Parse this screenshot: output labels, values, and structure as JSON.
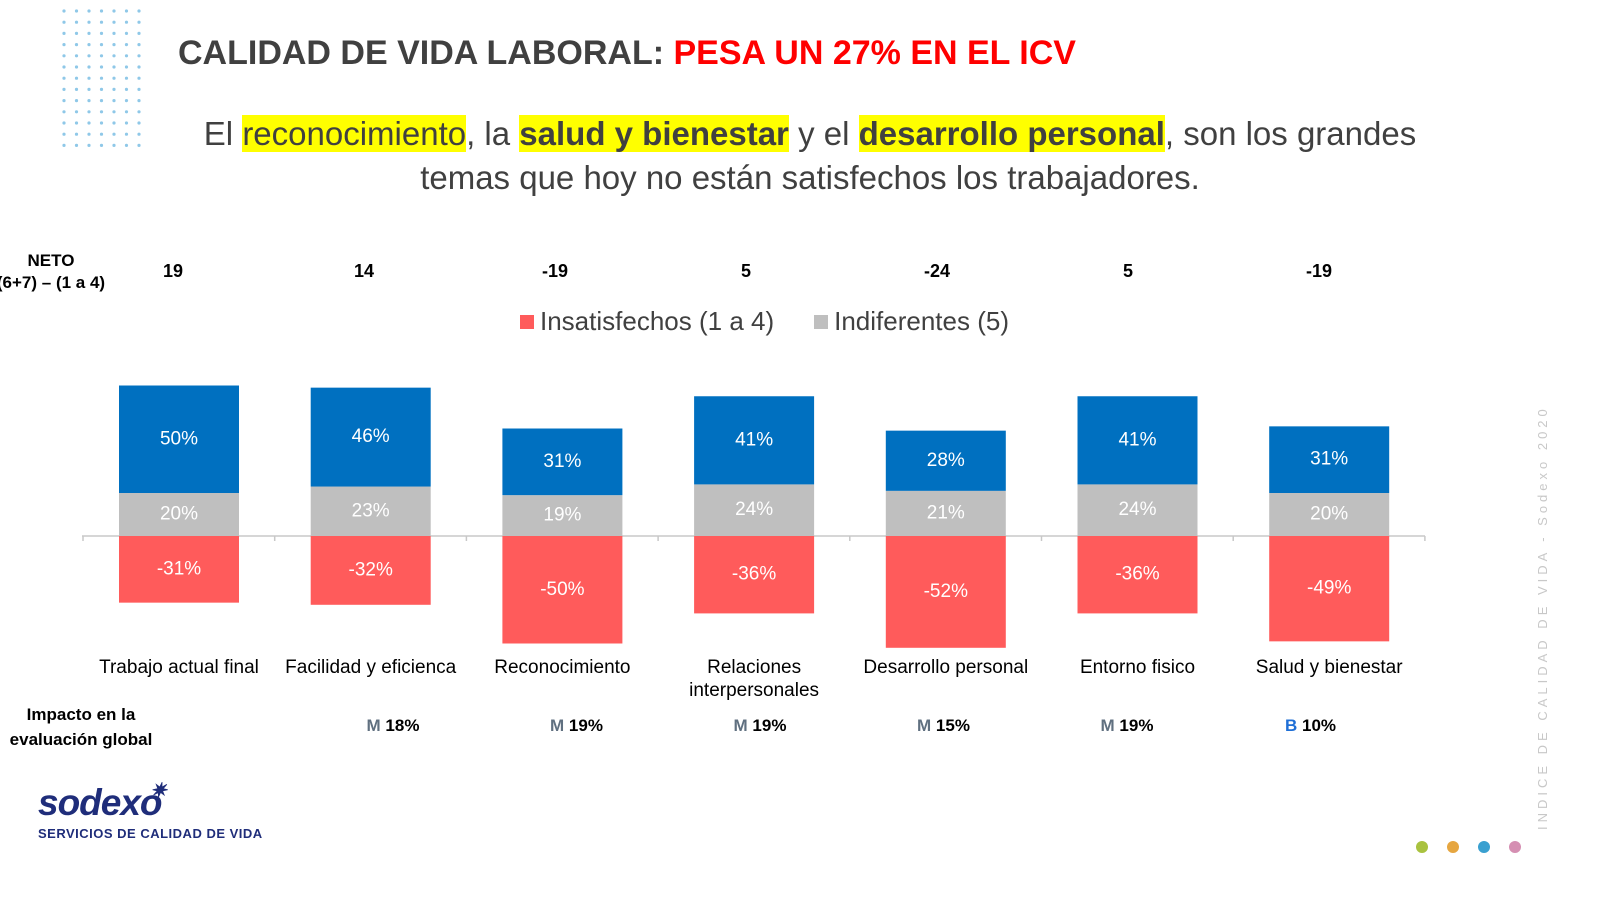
{
  "title": {
    "part1": "CALIDAD DE VIDA LABORAL:",
    "part2": "PESA UN 27% EN EL ICV"
  },
  "subtitle": {
    "s1": "El ",
    "h1": "reconocimiento",
    "s2": ", la ",
    "h2": "salud y bienestar",
    "s3": " y el ",
    "h3": "desarrollo personal",
    "s4": ",  son los grandes temas que hoy no están satisfechos los trabajadores."
  },
  "neto": {
    "label_line1": "NETO",
    "label_line2": "(6+7) – (1 a 4)",
    "values": [
      "19",
      "14",
      "-19",
      "5",
      "-24",
      "5",
      "-19"
    ]
  },
  "legend": {
    "insatisfechos": "Insatisfechos (1 a 4)",
    "indiferentes": "Indiferentes (5)"
  },
  "impact": {
    "label": "Impacto en la evaluación global",
    "values": [
      null,
      {
        "level": "M",
        "value": "18%"
      },
      {
        "level": "M",
        "value": "19%"
      },
      {
        "level": "M",
        "value": "19%"
      },
      {
        "level": "M",
        "value": "15%"
      },
      {
        "level": "M",
        "value": "19%"
      },
      {
        "level": "B",
        "value": "10%"
      }
    ]
  },
  "logo": {
    "word": "sodexo",
    "tagline": "SERVICIOS DE CALIDAD DE VIDA"
  },
  "side_text": "INDICE DE CALIDAD DE VIDA - Sodexo 2020",
  "colors": {
    "satisfechos": "#0070c0",
    "indiferentes": "#bfbfbf",
    "insatisfechos": "#ff5b5b",
    "title_red": "#ff0000",
    "highlight": "#ffff00"
  },
  "chart_data": {
    "type": "bar",
    "stacked": true,
    "categories": [
      "Trabajo actual final",
      "Facilidad y eficienca",
      "Reconocimiento",
      "Relaciones interpersonales",
      "Desarrollo personal",
      "Entorno fisico",
      "Salud y bienestar"
    ],
    "series": [
      {
        "name": "Insatisfechos (1 a 4)",
        "values": [
          -31,
          -32,
          -50,
          -36,
          -52,
          -36,
          -49
        ],
        "labels": [
          "-31%",
          "-32%",
          "-50%",
          "-36%",
          "-52%",
          "-36%",
          "-49%"
        ]
      },
      {
        "name": "Indiferentes (5)",
        "values": [
          20,
          23,
          19,
          24,
          21,
          24,
          20
        ],
        "labels": [
          "20%",
          "23%",
          "19%",
          "24%",
          "21%",
          "24%",
          "20%"
        ]
      },
      {
        "values": [
          50,
          46,
          31,
          41,
          28,
          41,
          31
        ],
        "labels": [
          "50%",
          "46%",
          "31%",
          "41%",
          "28%",
          "41%",
          "31%"
        ]
      }
    ],
    "legend": "top",
    "grid": false
  }
}
